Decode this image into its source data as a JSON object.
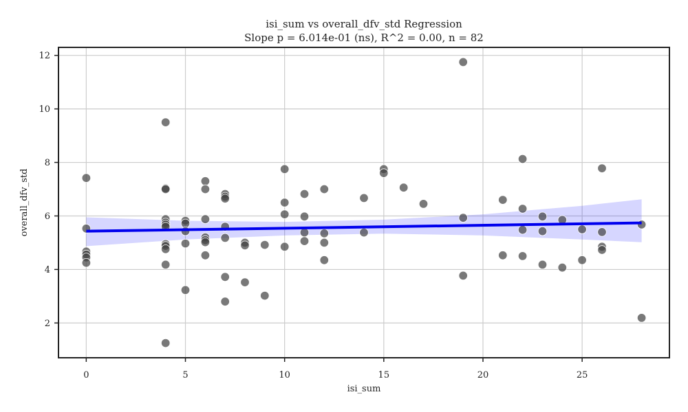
{
  "chart_data": {
    "type": "scatter",
    "title": "isi_sum vs overall_dfv_std Regression",
    "subtitle": "Slope p = 6.014e-01 (ns), R^2 = 0.00, n = 82",
    "xlabel": "isi_sum",
    "ylabel": "overall_dfv_std",
    "xlim": [
      -1.4,
      29.4
    ],
    "ylim": [
      0.7,
      12.3
    ],
    "xticks": [
      0,
      5,
      10,
      15,
      20,
      25
    ],
    "yticks": [
      2,
      4,
      6,
      8,
      10,
      12
    ],
    "grid": true,
    "colors": {
      "points": "#404040",
      "regression": "#0000ee",
      "ci_band": "#0000ff"
    },
    "regression": {
      "x": [
        0,
        28
      ],
      "y": [
        5.43,
        5.74
      ]
    },
    "ci_band": {
      "x": [
        0,
        5,
        10,
        15,
        20,
        25,
        28
      ],
      "lower": [
        4.87,
        5.12,
        5.27,
        5.34,
        5.27,
        5.12,
        5.02
      ],
      "upper": [
        5.95,
        5.82,
        5.78,
        5.86,
        6.06,
        6.38,
        6.62
      ]
    },
    "points": [
      [
        0,
        7.42
      ],
      [
        0,
        5.53
      ],
      [
        0,
        4.67
      ],
      [
        0,
        4.56
      ],
      [
        0,
        4.45
      ],
      [
        0,
        4.25
      ],
      [
        4,
        9.5
      ],
      [
        4,
        7.03
      ],
      [
        4,
        7.0
      ],
      [
        4,
        5.88
      ],
      [
        4,
        5.75
      ],
      [
        4,
        5.68
      ],
      [
        4,
        5.6
      ],
      [
        4,
        4.95
      ],
      [
        4,
        4.88
      ],
      [
        4,
        4.76
      ],
      [
        4,
        4.18
      ],
      [
        4,
        1.25
      ],
      [
        5,
        5.82
      ],
      [
        5,
        5.72
      ],
      [
        5,
        5.43
      ],
      [
        5,
        4.97
      ],
      [
        5,
        3.23
      ],
      [
        6,
        7.3
      ],
      [
        6,
        7.0
      ],
      [
        6,
        5.88
      ],
      [
        6,
        5.2
      ],
      [
        6,
        5.1
      ],
      [
        6,
        5.02
      ],
      [
        6,
        4.53
      ],
      [
        7,
        6.82
      ],
      [
        7,
        6.72
      ],
      [
        7,
        6.65
      ],
      [
        7,
        5.6
      ],
      [
        7,
        5.18
      ],
      [
        7,
        3.72
      ],
      [
        7,
        2.8
      ],
      [
        8,
        5.0
      ],
      [
        8,
        4.9
      ],
      [
        8,
        3.52
      ],
      [
        9,
        4.92
      ],
      [
        9,
        3.02
      ],
      [
        10,
        7.75
      ],
      [
        10,
        6.5
      ],
      [
        10,
        6.06
      ],
      [
        10,
        4.85
      ],
      [
        11,
        6.82
      ],
      [
        11,
        5.98
      ],
      [
        11,
        5.38
      ],
      [
        11,
        5.06
      ],
      [
        12,
        7.0
      ],
      [
        12,
        5.35
      ],
      [
        12,
        5.0
      ],
      [
        12,
        4.35
      ],
      [
        14,
        6.67
      ],
      [
        14,
        5.38
      ],
      [
        15,
        7.75
      ],
      [
        15,
        7.6
      ],
      [
        16,
        7.06
      ],
      [
        17,
        6.45
      ],
      [
        19,
        11.75
      ],
      [
        19,
        5.93
      ],
      [
        19,
        3.77
      ],
      [
        21,
        6.6
      ],
      [
        21,
        4.53
      ],
      [
        22,
        8.13
      ],
      [
        22,
        6.27
      ],
      [
        22,
        5.48
      ],
      [
        22,
        4.5
      ],
      [
        23,
        5.98
      ],
      [
        23,
        5.43
      ],
      [
        23,
        4.18
      ],
      [
        24,
        5.85
      ],
      [
        24,
        4.07
      ],
      [
        25,
        5.5
      ],
      [
        25,
        4.35
      ],
      [
        26,
        7.78
      ],
      [
        26,
        5.4
      ],
      [
        26,
        4.85
      ],
      [
        26,
        4.73
      ],
      [
        28,
        5.68
      ],
      [
        28,
        2.19
      ]
    ]
  }
}
